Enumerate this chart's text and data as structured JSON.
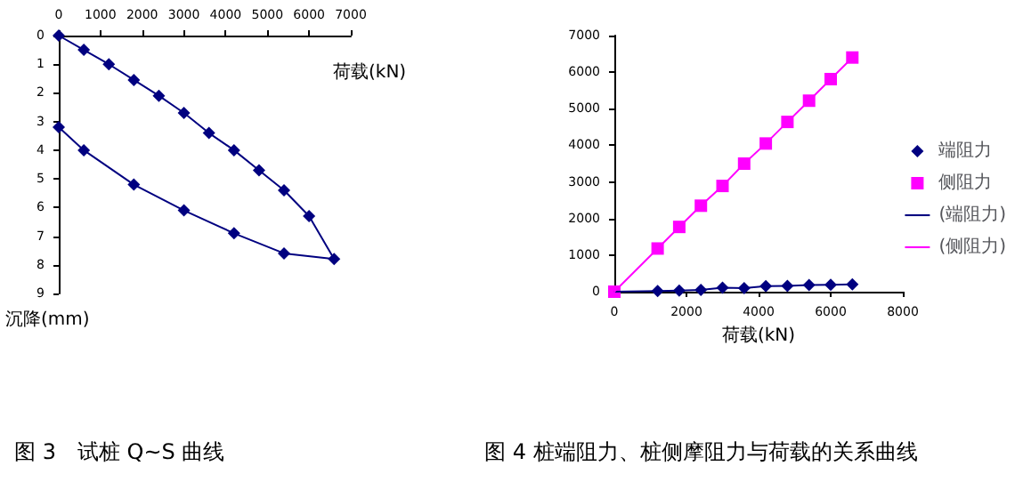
{
  "chart_data": [
    {
      "type": "line",
      "xlabel": "荷载(kN)",
      "ylabel": "沉降(mm)",
      "annotations": [
        "图 3　试桩 Q~S 曲线"
      ],
      "x": [
        0,
        600,
        1200,
        1800,
        2400,
        3000,
        3600,
        4200,
        4800,
        5400,
        6000,
        6600,
        5400,
        4200,
        3000,
        1800,
        600,
        0
      ],
      "series": [
        {
          "color": "#000080",
          "values": [
            0,
            0.5,
            1.0,
            1.55,
            2.1,
            2.7,
            3.4,
            4.0,
            4.7,
            5.4,
            6.3,
            7.8,
            7.6,
            6.9,
            6.1,
            5.2,
            4.0,
            3.2
          ]
        }
      ],
      "xlim": [
        0,
        7000
      ],
      "xticks": [
        0,
        1000,
        2000,
        3000,
        4000,
        5000,
        6000,
        7000
      ],
      "ylim": [
        9,
        0
      ],
      "yticks": [
        0,
        1,
        2,
        3,
        4,
        5,
        6,
        7,
        8,
        9
      ],
      "grid": false,
      "legend": false,
      "marker": "diamond",
      "line_style": "solid"
    },
    {
      "type": "scatter",
      "xlabel": "荷载(kN)",
      "annotations": [
        "图 4 桩端阻力、桩侧摩阻力与荷载的关系曲线"
      ],
      "x": [
        0,
        1200,
        1800,
        2400,
        3000,
        3600,
        4200,
        4800,
        5400,
        6000,
        6600
      ],
      "series": [
        {
          "name": "端阻力",
          "marker": "diamond",
          "color": "#000080",
          "values": [
            null,
            20,
            30,
            50,
            110,
            100,
            150,
            160,
            180,
            190,
            200
          ]
        },
        {
          "name": "侧阻力",
          "marker": "square",
          "color": "#ff00ff",
          "values": [
            0,
            1180,
            1770,
            2350,
            2890,
            3500,
            4050,
            4640,
            5220,
            5810,
            6400
          ]
        },
        {
          "name": "(端阻力)",
          "type": "line",
          "marker": "none",
          "color": "#000080",
          "values": [
            0,
            20,
            30,
            50,
            110,
            100,
            150,
            160,
            180,
            190,
            200
          ]
        },
        {
          "name": "(侧阻力)",
          "type": "line",
          "marker": "none",
          "color": "#ff00ff",
          "values": [
            0,
            1180,
            1770,
            2350,
            2890,
            3500,
            4050,
            4640,
            5220,
            5810,
            6400
          ]
        }
      ],
      "xlim": [
        0,
        8000
      ],
      "xticks": [
        0,
        2000,
        4000,
        6000,
        8000
      ],
      "ylim": [
        0,
        7000
      ],
      "yticks": [
        0,
        1000,
        2000,
        3000,
        4000,
        5000,
        6000,
        7000
      ],
      "grid": false,
      "legend": "right"
    }
  ]
}
